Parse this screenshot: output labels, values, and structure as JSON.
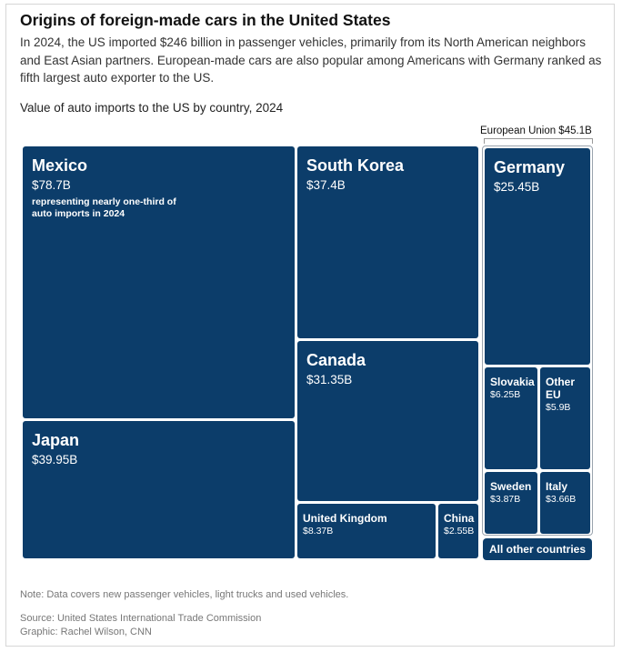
{
  "title": "Origins of foreign-made cars in the United States",
  "subtitle": "In 2024, the US imported $246 billion in passenger vehicles, primarily from its North American neighbors and East Asian partners. European-made cars are also popular among Americans with Germany ranked as fifth largest auto exporter to the US.",
  "chart_label": "Value of auto imports to the US by country, 2024",
  "eu_label": "European Union $45.1B",
  "other_countries_label": "All other countries",
  "mexico_note_plain": "representing ",
  "mexico_note_bold": "nearly one-third of auto imports in 2024",
  "footnote": "Note: Data covers new passenger vehicles, light trucks and used vehicles.",
  "source": "Source: United States International Trade Commission",
  "credit": "Graphic: Rachel Wilson, CNN",
  "colors": {
    "tile": "#0c3d6a",
    "background": "#ffffff",
    "text_muted": "#777777"
  },
  "chart_data": {
    "type": "treemap",
    "title": "Value of auto imports to the US by country, 2024",
    "unit": "billion USD",
    "items": [
      {
        "name": "Mexico",
        "value": 78.7,
        "label": "$78.7B",
        "group": ""
      },
      {
        "name": "Japan",
        "value": 39.95,
        "label": "$39.95B",
        "group": ""
      },
      {
        "name": "South Korea",
        "value": 37.4,
        "label": "$37.4B",
        "group": ""
      },
      {
        "name": "Canada",
        "value": 31.35,
        "label": "$31.35B",
        "group": ""
      },
      {
        "name": "United Kingdom",
        "value": 8.37,
        "label": "$8.37B",
        "group": ""
      },
      {
        "name": "China",
        "value": 2.55,
        "label": "$2.55B",
        "group": ""
      },
      {
        "name": "Germany",
        "value": 25.45,
        "label": "$25.45B",
        "group": "European Union"
      },
      {
        "name": "Slovakia",
        "value": 6.25,
        "label": "$6.25B",
        "group": "European Union"
      },
      {
        "name": "Other EU",
        "value": 5.9,
        "label": "$5.9B",
        "group": "European Union"
      },
      {
        "name": "Sweden",
        "value": 3.87,
        "label": "$3.87B",
        "group": "European Union"
      },
      {
        "name": "Italy",
        "value": 3.66,
        "label": "$3.66B",
        "group": "European Union"
      }
    ],
    "groups": [
      {
        "name": "European Union",
        "total": 45.1,
        "label": "$45.1B"
      }
    ]
  }
}
